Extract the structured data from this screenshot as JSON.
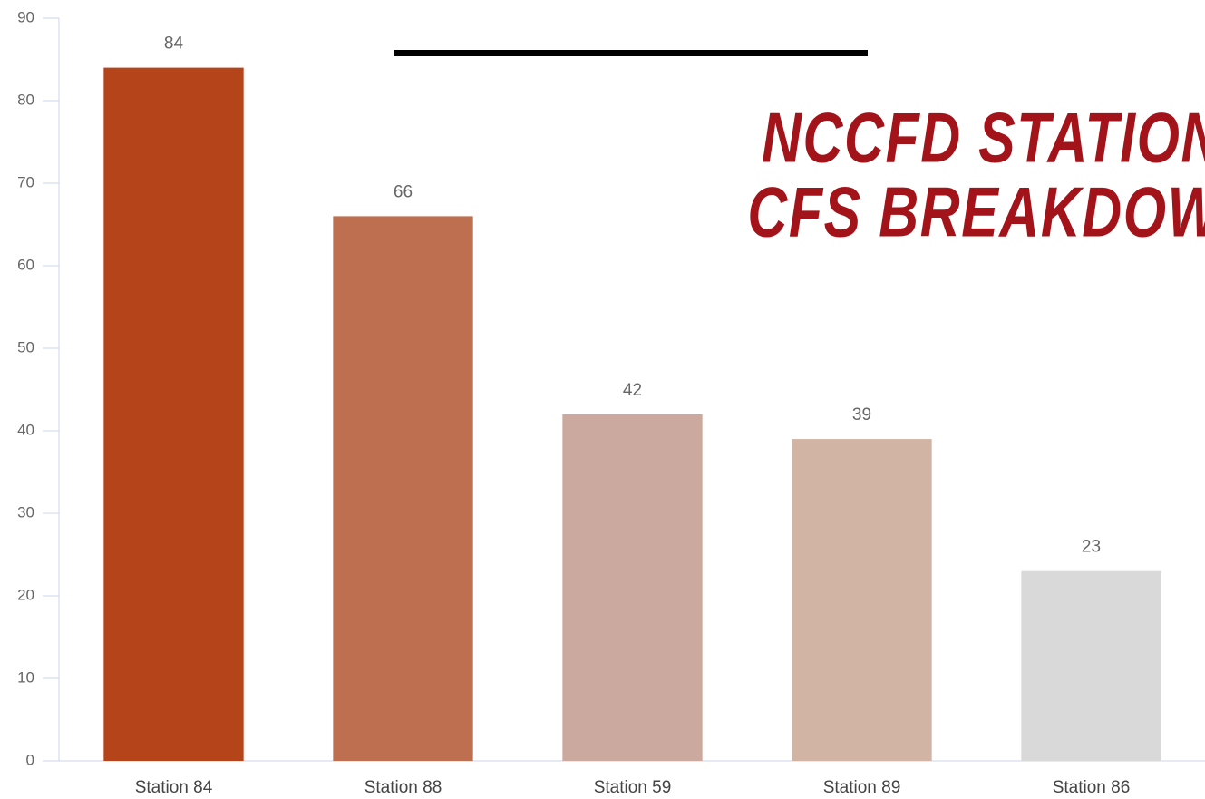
{
  "chart_data": {
    "type": "bar",
    "title": [
      "NCCFD STATION",
      "CFS BREAKDOWN"
    ],
    "categories": [
      "Station 84",
      "Station 88",
      "Station 59",
      "Station 89",
      "Station 86"
    ],
    "values": [
      84,
      66,
      42,
      39,
      23
    ],
    "colors": [
      "#b5441b",
      "#bd6f50",
      "#cba99f",
      "#d1b4a3",
      "#d9d9d9"
    ],
    "ylim": [
      0,
      90
    ],
    "yticks": [
      0,
      10,
      20,
      30,
      40,
      50,
      60,
      70,
      80,
      90
    ],
    "grid": false
  }
}
